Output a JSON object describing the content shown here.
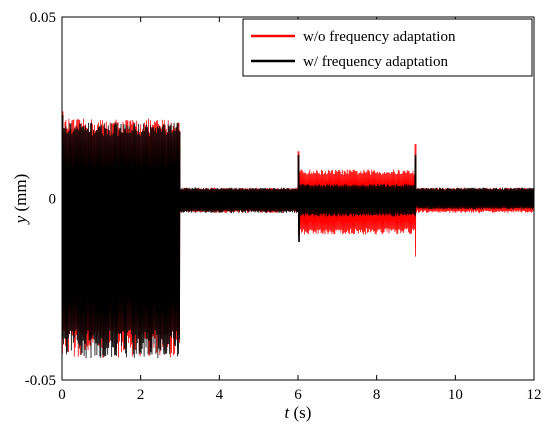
{
  "chart_data": {
    "type": "line",
    "xlabel": {
      "var": "t",
      "unit": " (s)"
    },
    "ylabel": {
      "var": "y",
      "unit": " (mm)"
    },
    "xlim": [
      0,
      12
    ],
    "ylim": [
      -0.05,
      0.05
    ],
    "x_ticks": [
      0,
      2,
      4,
      6,
      8,
      10,
      12
    ],
    "y_ticks": [
      -0.05,
      0,
      0.05
    ],
    "x_tick_labels": [
      "0",
      "2",
      "4",
      "6",
      "8",
      "10",
      "12"
    ],
    "y_tick_labels": [
      "-0.05",
      "0",
      "0.05"
    ],
    "grid": false,
    "legend_position": "top-right",
    "series": [
      {
        "name": "w/o frequency adaptation",
        "color": "#ff0000",
        "segments": [
          {
            "t": [
              0,
              3
            ],
            "upper": 0.022,
            "lower": -0.044,
            "spike": 0.024
          },
          {
            "t": [
              3,
              6
            ],
            "upper": 0.003,
            "lower": -0.004
          },
          {
            "t": [
              6,
              9
            ],
            "upper": 0.008,
            "lower": -0.01,
            "start_spike": 0.013,
            "end_spike": 0.015,
            "end_spike_low": -0.016
          },
          {
            "t": [
              9,
              12
            ],
            "upper": 0.003,
            "lower": -0.004
          }
        ]
      },
      {
        "name": "w/ frequency adaptation",
        "color": "#000000",
        "segments": [
          {
            "t": [
              0,
              3
            ],
            "upper": 0.021,
            "lower": -0.044,
            "spike": 0.023
          },
          {
            "t": [
              3,
              6
            ],
            "upper": 0.003,
            "lower": -0.004
          },
          {
            "t": [
              6,
              9
            ],
            "upper": 0.004,
            "lower": -0.005,
            "start_spike": 0.012,
            "start_spike_low": -0.012,
            "end_spike": 0.012
          },
          {
            "t": [
              9,
              12
            ],
            "upper": 0.003,
            "lower": -0.003
          }
        ]
      }
    ]
  }
}
